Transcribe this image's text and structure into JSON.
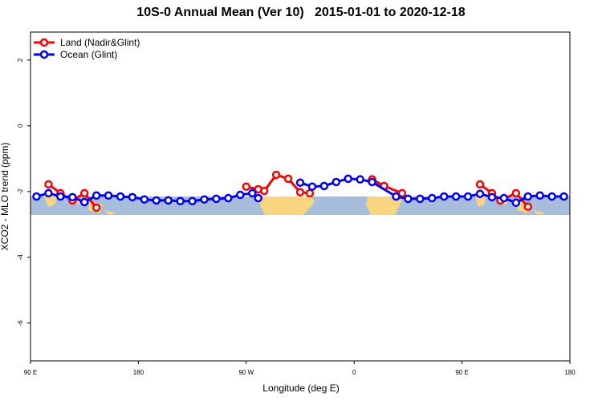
{
  "chart_data": {
    "type": "line",
    "title": "10S-0 Annual Mean (Ver 10)   2015-01-01 to 2020-12-18",
    "xlabel": "Longitude (deg E)",
    "ylabel": "XCO2 - MLO trend (ppm)",
    "xlim": [
      90,
      540
    ],
    "ylim": [
      -7.15,
      2.85
    ],
    "xticks": [
      {
        "value": 90,
        "label": "90 E"
      },
      180,
      {
        "value": 270,
        "label": "90 W"
      },
      {
        "value": 360,
        "label": "0"
      },
      {
        "value": 450,
        "label": "90 E"
      },
      {
        "value": 540,
        "label": "180"
      }
    ],
    "yticks": [
      -6,
      -4,
      -2,
      0,
      2
    ],
    "legend": "top-left",
    "series": [
      {
        "name": "Land (Nadir&Glint)",
        "color": "#ff0000",
        "x": [
          105,
          115,
          125,
          135,
          145,
          200,
          270,
          280,
          285,
          295,
          305,
          315,
          323,
          350,
          375,
          385,
          400,
          450,
          465,
          475,
          482,
          495,
          505
        ],
        "values": [
          -1.78,
          -2.05,
          -2.27,
          -2.05,
          -2.49,
          null,
          -1.85,
          -1.93,
          -1.98,
          -1.49,
          -1.61,
          -2.02,
          -2.05,
          null,
          -1.63,
          -1.83,
          -2.05,
          null,
          -1.78,
          -2.05,
          -2.27,
          -2.05,
          -2.46
        ]
      },
      {
        "name": "Ocean (Glint)",
        "color": "#0000ff",
        "x": [
          95,
          105,
          115,
          125,
          135,
          145,
          155,
          165,
          175,
          185,
          195,
          205,
          215,
          225,
          235,
          245,
          255,
          265,
          275,
          280,
          300,
          315,
          325,
          335,
          345,
          355,
          365,
          375,
          395,
          405,
          415,
          425,
          435,
          445,
          455,
          465,
          475,
          485,
          495,
          505,
          515,
          525,
          535
        ],
        "values": [
          -2.15,
          -2.05,
          -2.15,
          -2.17,
          -2.32,
          -2.12,
          -2.12,
          -2.15,
          -2.17,
          -2.24,
          -2.27,
          -2.27,
          -2.29,
          -2.29,
          -2.24,
          -2.22,
          -2.2,
          -2.1,
          -2.05,
          -2.2,
          null,
          -1.73,
          -1.85,
          -1.83,
          -1.71,
          -1.61,
          -1.63,
          -1.71,
          -2.15,
          -2.22,
          -2.22,
          -2.2,
          -2.15,
          -2.15,
          -2.15,
          -2.07,
          -2.17,
          -2.2,
          -2.34,
          -2.15,
          -2.12,
          -2.15,
          -2.15
        ]
      }
    ]
  }
}
